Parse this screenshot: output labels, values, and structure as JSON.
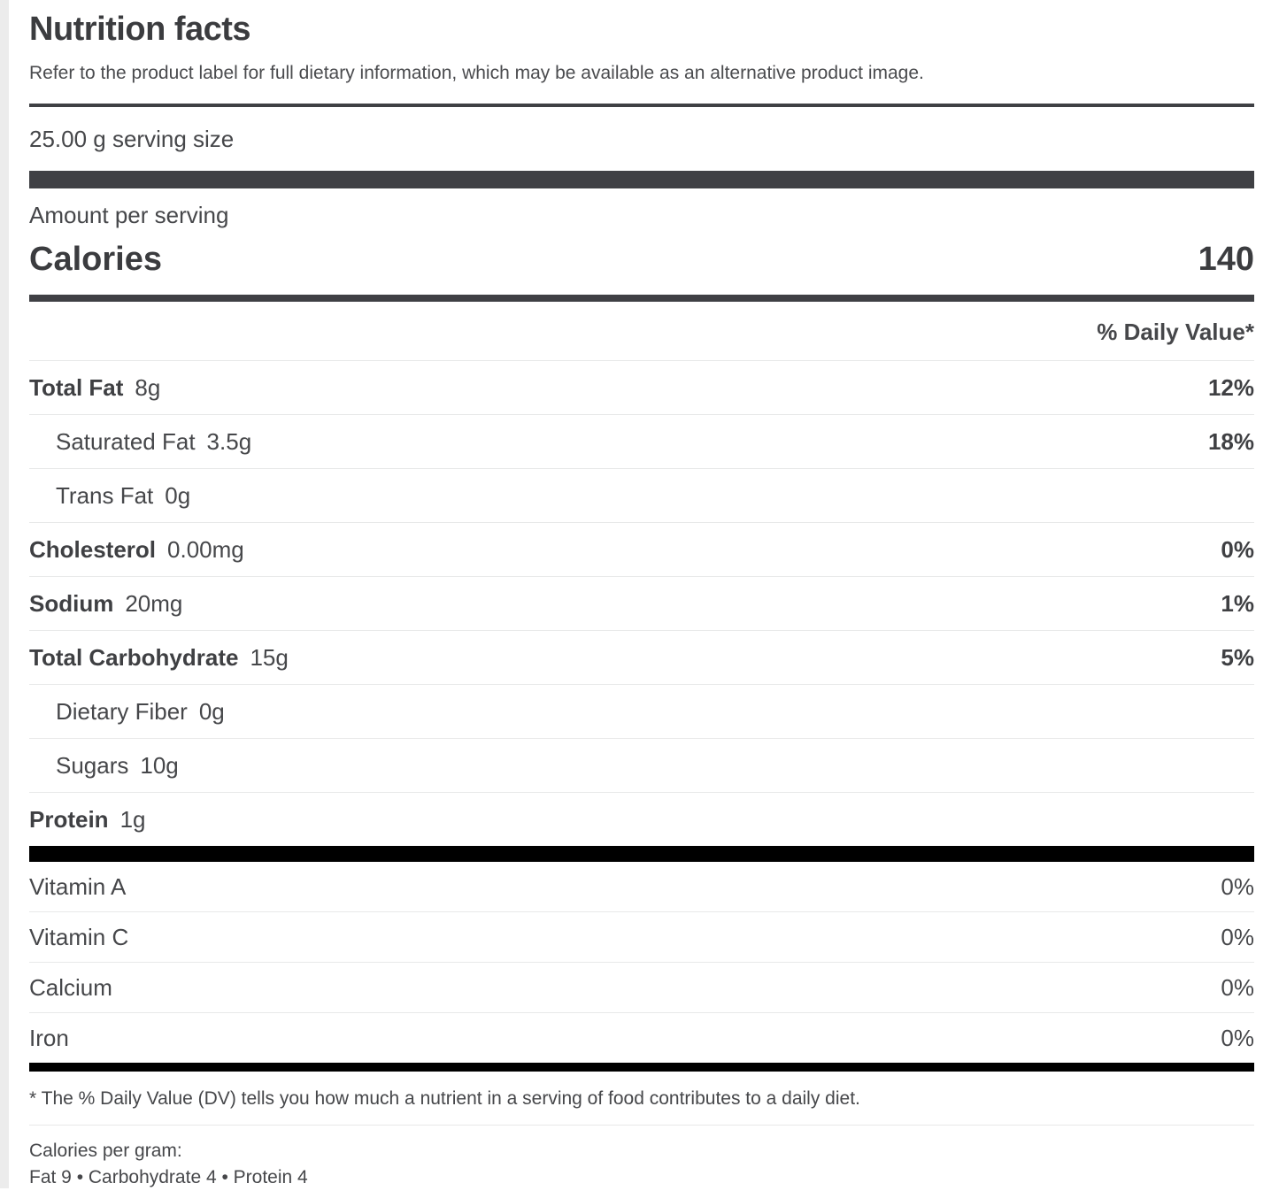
{
  "header": {
    "title": "Nutrition facts",
    "subtitle": "Refer to the product label for full dietary information, which may be available as an alternative product image."
  },
  "serving": {
    "size": "25.00 g serving size",
    "amount_label": "Amount per serving"
  },
  "calories": {
    "label": "Calories",
    "value": "140"
  },
  "daily_value_header": "% Daily Value*",
  "nutrients": [
    {
      "label": "Total Fat",
      "amount": "8g",
      "dv": "12%",
      "bold": true,
      "indent": false
    },
    {
      "label": "Saturated Fat",
      "amount": "3.5g",
      "dv": "18%",
      "bold": false,
      "indent": true
    },
    {
      "label": "Trans Fat",
      "amount": "0g",
      "dv": "",
      "bold": false,
      "indent": true
    },
    {
      "label": "Cholesterol",
      "amount": "0.00mg",
      "dv": "0%",
      "bold": true,
      "indent": false
    },
    {
      "label": "Sodium",
      "amount": "20mg",
      "dv": "1%",
      "bold": true,
      "indent": false
    },
    {
      "label": "Total Carbohydrate",
      "amount": "15g",
      "dv": "5%",
      "bold": true,
      "indent": false
    },
    {
      "label": "Dietary Fiber",
      "amount": "0g",
      "dv": "",
      "bold": false,
      "indent": true
    },
    {
      "label": "Sugars",
      "amount": "10g",
      "dv": "",
      "bold": false,
      "indent": true
    },
    {
      "label": "Protein",
      "amount": "1g",
      "dv": "",
      "bold": true,
      "indent": false
    }
  ],
  "vitamins": [
    {
      "label": "Vitamin A",
      "dv": "0%"
    },
    {
      "label": "Vitamin C",
      "dv": "0%"
    },
    {
      "label": "Calcium",
      "dv": "0%"
    },
    {
      "label": "Iron",
      "dv": "0%"
    }
  ],
  "footnotes": {
    "daily_value_note": "* The % Daily Value (DV) tells you how much a nutrient in a serving of food contributes to a daily diet.",
    "calories_per_gram_label": "Calories per gram:",
    "calories_per_gram_values": "Fat 9 • Carbohydrate 4 • Protein 4"
  },
  "colors": {
    "text": "#46474a",
    "bar_dark": "#3f4044",
    "bar_black": "#000000",
    "divider": "#e8e9e9",
    "page_edge": "#ececec"
  }
}
